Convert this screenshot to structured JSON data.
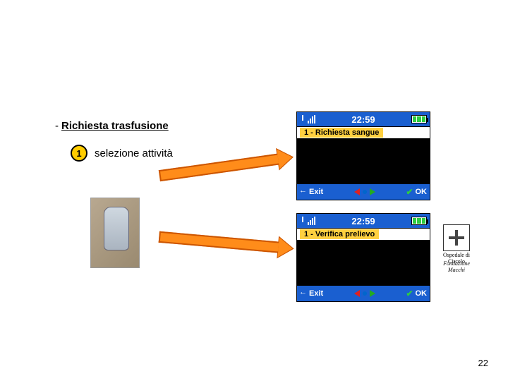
{
  "heading": {
    "prefix": "-",
    "text": "Richiesta trasfusione"
  },
  "step": {
    "number": "1",
    "label": "selezione attività"
  },
  "screens": {
    "s1": {
      "time": "22:59",
      "menu_label": "1 - Richiesta sangue",
      "exit_label": "Exit",
      "ok_label": "OK"
    },
    "s2": {
      "time": "22:59",
      "menu_label": "1 - Verifica prelievo",
      "exit_label": "Exit",
      "ok_label": "OK"
    }
  },
  "logos": {
    "ospedale": "Ospedale di Circolo",
    "fondazione_line1": "Fondazione",
    "fondazione_line2": "Macchi"
  },
  "page_number": "22",
  "colors": {
    "status_blue": "#1a5fd0",
    "highlight_yellow": "#ffd040",
    "arrow_orange": "#ff8c1a",
    "badge_yellow": "#ffcc00"
  }
}
